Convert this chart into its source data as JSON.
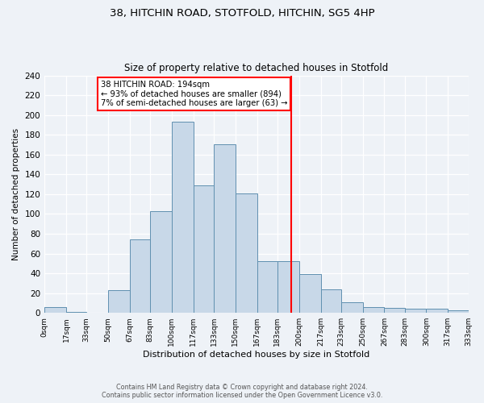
{
  "title1": "38, HITCHIN ROAD, STOTFOLD, HITCHIN, SG5 4HP",
  "title2": "Size of property relative to detached houses in Stotfold",
  "xlabel": "Distribution of detached houses by size in Stotfold",
  "ylabel": "Number of detached properties",
  "bar_heights": [
    6,
    1,
    0,
    23,
    74,
    103,
    193,
    129,
    170,
    121,
    52,
    52,
    39,
    24,
    11,
    6,
    5,
    4,
    4,
    3
  ],
  "bin_edges": [
    0,
    17,
    33,
    50,
    67,
    83,
    100,
    117,
    133,
    150,
    167,
    183,
    200,
    217,
    233,
    250,
    267,
    283,
    300,
    317,
    333
  ],
  "tick_labels": [
    "0sqm",
    "17sqm",
    "33sqm",
    "50sqm",
    "67sqm",
    "83sqm",
    "100sqm",
    "117sqm",
    "133sqm",
    "150sqm",
    "167sqm",
    "183sqm",
    "200sqm",
    "217sqm",
    "233sqm",
    "250sqm",
    "267sqm",
    "283sqm",
    "300sqm",
    "317sqm",
    "333sqm"
  ],
  "bar_color": "#c8d8e8",
  "bar_edge_color": "#6090b0",
  "vline_x": 194,
  "vline_color": "red",
  "annotation_title": "38 HITCHIN ROAD: 194sqm",
  "annotation_line1": "← 93% of detached houses are smaller (894)",
  "annotation_line2": "7% of semi-detached houses are larger (63) →",
  "annotation_box_color": "white",
  "annotation_box_edge": "red",
  "ylim": [
    0,
    240
  ],
  "yticks": [
    0,
    20,
    40,
    60,
    80,
    100,
    120,
    140,
    160,
    180,
    200,
    220,
    240
  ],
  "footer1": "Contains HM Land Registry data © Crown copyright and database right 2024.",
  "footer2": "Contains public sector information licensed under the Open Government Licence v3.0.",
  "bg_color": "#eef2f7"
}
